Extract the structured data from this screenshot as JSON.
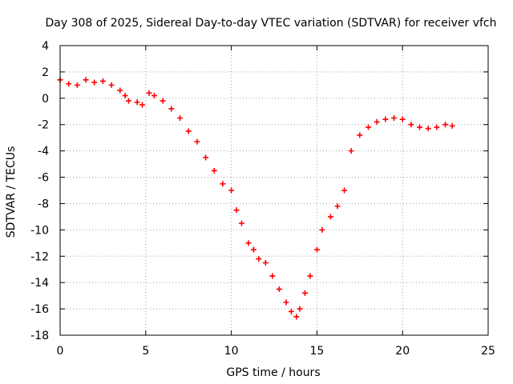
{
  "chart_data": {
    "type": "scatter",
    "title": "Day 308 of 2025, Sidereal Day-to-day VTEC variation (SDTVAR) for receiver vfch",
    "xlabel": "GPS time / hours",
    "ylabel": "SDTVAR / TECUs",
    "xlim": [
      0,
      25
    ],
    "ylim": [
      -18,
      4
    ],
    "xticks": [
      0,
      5,
      10,
      15,
      20,
      25
    ],
    "xtick_labels": [
      "0",
      "5",
      "10",
      "15",
      "20",
      "25"
    ],
    "yticks": [
      4,
      2,
      0,
      -2,
      -4,
      -6,
      -8,
      -10,
      -12,
      -14,
      -16,
      -18
    ],
    "ytick_labels": [
      "4",
      "2",
      "0",
      "-2",
      "-4",
      "-6",
      "-8",
      "-10",
      "-12",
      "-14",
      "-16",
      "-18"
    ],
    "grid": true,
    "legend": "none",
    "marker": "plus",
    "color": "#ff0000",
    "series": [
      {
        "name": "vfch",
        "x": [
          0.0,
          0.5,
          1.0,
          1.5,
          2.0,
          2.5,
          3.0,
          3.5,
          3.8,
          4.0,
          4.5,
          4.8,
          5.2,
          5.5,
          6.0,
          6.5,
          7.0,
          7.5,
          8.0,
          8.5,
          9.0,
          9.5,
          10.0,
          10.3,
          10.6,
          11.0,
          11.3,
          11.6,
          12.0,
          12.4,
          12.8,
          13.2,
          13.5,
          13.8,
          14.0,
          14.3,
          14.6,
          15.0,
          15.3,
          15.8,
          16.2,
          16.6,
          17.0,
          17.5,
          18.0,
          18.5,
          19.0,
          19.5,
          20.0,
          20.5,
          21.0,
          21.5,
          22.0,
          22.5,
          22.9
        ],
        "y": [
          1.4,
          1.1,
          1.0,
          1.4,
          1.2,
          1.3,
          1.0,
          0.6,
          0.2,
          -0.2,
          -0.3,
          -0.5,
          0.4,
          0.2,
          -0.2,
          -0.8,
          -1.5,
          -2.5,
          -3.3,
          -4.5,
          -5.5,
          -6.5,
          -7.0,
          -8.5,
          -9.5,
          -11.0,
          -11.5,
          -12.2,
          -12.5,
          -13.5,
          -14.5,
          -15.5,
          -16.2,
          -16.6,
          -16.0,
          -14.8,
          -13.5,
          -11.5,
          -10.0,
          -9.0,
          -8.2,
          -7.0,
          -4.0,
          -2.8,
          -2.2,
          -1.8,
          -1.6,
          -1.5,
          -1.6,
          -2.0,
          -2.2,
          -2.3,
          -2.2,
          -2.0,
          -2.1
        ]
      }
    ]
  }
}
